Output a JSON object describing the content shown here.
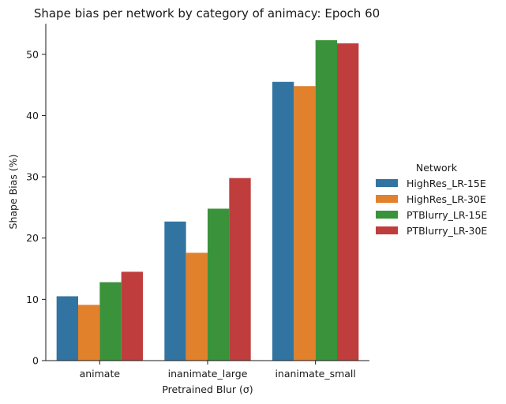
{
  "chart_data": {
    "type": "bar",
    "title": "Shape bias per network by category of animacy: Epoch 60",
    "xlabel": "Pretrained Blur (σ)",
    "ylabel": "Shape Bias (%)",
    "categories": [
      "animate",
      "inanimate_large",
      "inanimate_small"
    ],
    "ylim": [
      0,
      55
    ],
    "yticks": [
      0,
      10,
      20,
      30,
      40,
      50
    ],
    "grid": false,
    "legend_title": "Network",
    "legend_position": "right",
    "series": [
      {
        "name": "HighRes_LR-15E",
        "color": "#3274a1",
        "values": [
          10.5,
          22.7,
          45.5
        ]
      },
      {
        "name": "HighRes_LR-30E",
        "color": "#e1812c",
        "values": [
          9.1,
          17.6,
          44.8
        ]
      },
      {
        "name": "PTBlurry_LR-15E",
        "color": "#3a923a",
        "values": [
          12.8,
          24.8,
          52.3
        ]
      },
      {
        "name": "PTBlurry_LR-30E",
        "color": "#c03d3e",
        "values": [
          14.5,
          29.8,
          51.8
        ]
      }
    ]
  }
}
